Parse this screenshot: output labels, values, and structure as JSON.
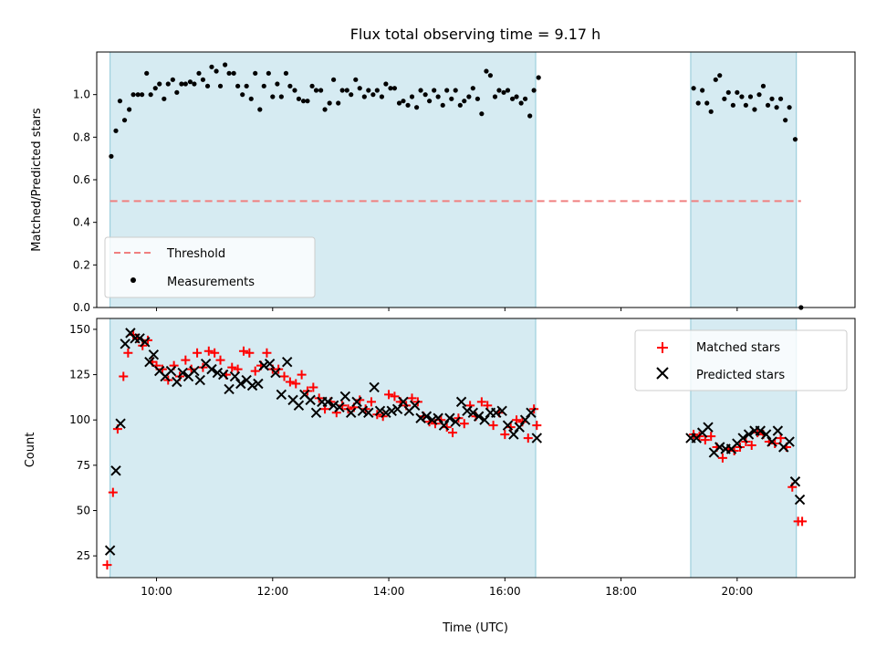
{
  "chart_data": [
    {
      "type": "scatter",
      "title": "Flux total observing time = 9.17 h",
      "ylabel": "Matched/Predicted stars",
      "xlim": [
        8.97,
        22.03
      ],
      "ylim": [
        0.0,
        1.2
      ],
      "yticks": [
        0.0,
        0.2,
        0.4,
        0.6,
        0.8,
        1.0
      ],
      "ytick_labels": [
        "0.0",
        "0.2",
        "0.4",
        "0.6",
        "0.8",
        "1.0"
      ],
      "legend_position": "lower-left",
      "shaded_intervals": [
        [
          9.2,
          16.53
        ],
        [
          19.2,
          21.02
        ]
      ],
      "series": [
        {
          "name": "Threshold",
          "style": "dashed-line",
          "color": "#f08080",
          "x": [
            9.2,
            21.1
          ],
          "y": [
            0.5,
            0.5
          ]
        },
        {
          "name": "Measurements",
          "style": "dot",
          "color": "#000000",
          "x": [
            9.22,
            9.3,
            9.37,
            9.45,
            9.53,
            9.6,
            9.68,
            9.75,
            9.83,
            9.9,
            9.98,
            10.05,
            10.13,
            10.2,
            10.28,
            10.35,
            10.43,
            10.5,
            10.58,
            10.65,
            10.73,
            10.8,
            10.88,
            10.95,
            11.03,
            11.1,
            11.18,
            11.25,
            11.33,
            11.4,
            11.48,
            11.55,
            11.63,
            11.7,
            11.78,
            11.85,
            11.93,
            12.0,
            12.08,
            12.15,
            12.23,
            12.3,
            12.38,
            12.45,
            12.53,
            12.6,
            12.68,
            12.75,
            12.83,
            12.9,
            12.98,
            13.05,
            13.13,
            13.2,
            13.28,
            13.35,
            13.43,
            13.5,
            13.58,
            13.65,
            13.73,
            13.8,
            13.88,
            13.95,
            14.03,
            14.1,
            14.18,
            14.25,
            14.33,
            14.4,
            14.48,
            14.55,
            14.63,
            14.7,
            14.78,
            14.85,
            14.93,
            15.0,
            15.08,
            15.15,
            15.23,
            15.3,
            15.38,
            15.45,
            15.53,
            15.6,
            15.68,
            15.75,
            15.83,
            15.9,
            15.98,
            16.05,
            16.13,
            16.2,
            16.28,
            16.35,
            16.43,
            16.5,
            16.58,
            19.25,
            19.33,
            19.4,
            19.48,
            19.55,
            19.63,
            19.7,
            19.78,
            19.85,
            19.93,
            20.0,
            20.08,
            20.15,
            20.23,
            20.3,
            20.38,
            20.45,
            20.53,
            20.6,
            20.68,
            20.75,
            20.83,
            20.9,
            21.0,
            21.1
          ],
          "y": [
            0.71,
            0.83,
            0.97,
            0.88,
            0.93,
            1.0,
            1.0,
            1.0,
            1.1,
            1.0,
            1.03,
            1.05,
            0.98,
            1.05,
            1.07,
            1.01,
            1.05,
            1.05,
            1.06,
            1.05,
            1.1,
            1.07,
            1.04,
            1.13,
            1.11,
            1.04,
            1.14,
            1.1,
            1.1,
            1.04,
            1.0,
            1.04,
            0.98,
            1.1,
            0.93,
            1.04,
            1.1,
            0.99,
            1.05,
            0.99,
            1.1,
            1.04,
            1.02,
            0.98,
            0.97,
            0.97,
            1.04,
            1.02,
            1.02,
            0.93,
            0.96,
            1.07,
            0.96,
            1.02,
            1.02,
            1.0,
            1.07,
            1.03,
            0.99,
            1.02,
            1.0,
            1.02,
            0.99,
            1.05,
            1.03,
            1.03,
            0.96,
            0.97,
            0.95,
            0.99,
            0.94,
            1.02,
            1.0,
            0.97,
            1.02,
            0.99,
            0.95,
            1.02,
            0.98,
            1.02,
            0.95,
            0.97,
            0.99,
            1.03,
            0.98,
            0.91,
            1.11,
            1.09,
            0.99,
            1.02,
            1.01,
            1.02,
            0.98,
            0.99,
            0.96,
            0.98,
            0.9,
            1.02,
            1.08,
            1.03,
            0.96,
            1.02,
            0.96,
            0.92,
            1.07,
            1.09,
            0.98,
            1.01,
            0.95,
            1.01,
            0.99,
            0.95,
            0.99,
            0.93,
            1.0,
            1.04,
            0.95,
            0.98,
            0.94,
            0.98,
            0.88,
            0.94,
            0.79,
            0.0
          ]
        }
      ]
    },
    {
      "type": "scatter",
      "xlabel": "Time (UTC)",
      "ylabel": "Count",
      "xlim": [
        8.97,
        22.03
      ],
      "ylim": [
        13,
        156
      ],
      "xticks": [
        10,
        12,
        14,
        16,
        18,
        20
      ],
      "xtick_labels": [
        "10:00",
        "12:00",
        "14:00",
        "16:00",
        "18:00",
        "20:00"
      ],
      "yticks": [
        25,
        50,
        75,
        100,
        125,
        150
      ],
      "ytick_labels": [
        "25",
        "50",
        "75",
        "100",
        "125",
        "150"
      ],
      "legend_position": "upper-right",
      "shaded_intervals": [
        [
          9.2,
          16.53
        ],
        [
          19.2,
          21.02
        ]
      ],
      "series": [
        {
          "name": "Matched stars",
          "marker": "plus",
          "color": "#ff0000",
          "x": [
            9.15,
            9.25,
            9.33,
            9.43,
            9.51,
            9.6,
            9.68,
            9.76,
            9.85,
            9.93,
            10.0,
            10.1,
            10.2,
            10.3,
            10.4,
            10.5,
            10.6,
            10.7,
            10.8,
            10.9,
            11.0,
            11.1,
            11.2,
            11.3,
            11.4,
            11.5,
            11.6,
            11.7,
            11.8,
            11.9,
            12.0,
            12.1,
            12.2,
            12.3,
            12.4,
            12.5,
            12.6,
            12.7,
            12.8,
            12.9,
            13.0,
            13.1,
            13.2,
            13.3,
            13.4,
            13.5,
            13.6,
            13.7,
            13.8,
            13.9,
            14.0,
            14.1,
            14.2,
            14.3,
            14.4,
            14.5,
            14.6,
            14.7,
            14.8,
            14.9,
            15.0,
            15.1,
            15.2,
            15.3,
            15.4,
            15.5,
            15.6,
            15.7,
            15.8,
            15.9,
            16.0,
            16.1,
            16.2,
            16.3,
            16.4,
            16.5,
            16.55,
            19.25,
            19.35,
            19.45,
            19.55,
            19.65,
            19.75,
            19.85,
            19.95,
            20.05,
            20.15,
            20.25,
            20.35,
            20.45,
            20.55,
            20.65,
            20.75,
            20.85,
            20.95,
            21.05,
            21.12
          ],
          "y": [
            20,
            60,
            95,
            124,
            137,
            147,
            145,
            141,
            144,
            132,
            130,
            128,
            122,
            130,
            124,
            133,
            128,
            137,
            129,
            138,
            137,
            133,
            125,
            129,
            128,
            138,
            137,
            127,
            130,
            137,
            128,
            128,
            124,
            121,
            120,
            125,
            116,
            118,
            112,
            106,
            110,
            104,
            108,
            106,
            107,
            111,
            106,
            110,
            103,
            102,
            114,
            113,
            110,
            108,
            112,
            110,
            102,
            99,
            98,
            100,
            96,
            93,
            101,
            98,
            108,
            102,
            110,
            108,
            97,
            104,
            92,
            96,
            100,
            99,
            90,
            106,
            97,
            92,
            91,
            89,
            91,
            85,
            79,
            84,
            83,
            85,
            88,
            86,
            93,
            92,
            88,
            87,
            90,
            85,
            63,
            44,
            44
          ]
        },
        {
          "name": "Predicted stars",
          "marker": "x",
          "color": "#000000",
          "x": [
            9.2,
            9.3,
            9.38,
            9.46,
            9.55,
            9.63,
            9.71,
            9.8,
            9.88,
            9.95,
            10.05,
            10.15,
            10.25,
            10.35,
            10.45,
            10.55,
            10.65,
            10.75,
            10.85,
            10.95,
            11.05,
            11.15,
            11.25,
            11.35,
            11.45,
            11.55,
            11.65,
            11.75,
            11.85,
            11.95,
            12.05,
            12.15,
            12.25,
            12.35,
            12.45,
            12.55,
            12.65,
            12.75,
            12.85,
            12.95,
            13.05,
            13.15,
            13.25,
            13.35,
            13.45,
            13.55,
            13.65,
            13.75,
            13.85,
            13.95,
            14.05,
            14.15,
            14.25,
            14.35,
            14.45,
            14.55,
            14.65,
            14.75,
            14.85,
            14.95,
            15.05,
            15.15,
            15.25,
            15.35,
            15.45,
            15.55,
            15.65,
            15.75,
            15.85,
            15.95,
            16.05,
            16.15,
            16.25,
            16.35,
            16.45,
            16.55,
            19.2,
            19.3,
            19.4,
            19.5,
            19.6,
            19.7,
            19.8,
            19.9,
            20.0,
            20.1,
            20.2,
            20.3,
            20.4,
            20.5,
            20.6,
            20.7,
            20.8,
            20.9,
            21.0,
            21.08
          ],
          "y": [
            28,
            72,
            98,
            142,
            148,
            145,
            145,
            143,
            132,
            136,
            127,
            124,
            127,
            121,
            126,
            124,
            127,
            122,
            131,
            128,
            126,
            125,
            117,
            124,
            120,
            122,
            119,
            120,
            130,
            131,
            126,
            114,
            132,
            111,
            108,
            114,
            111,
            104,
            110,
            110,
            108,
            107,
            113,
            104,
            110,
            105,
            104,
            118,
            105,
            104,
            105,
            106,
            110,
            105,
            108,
            101,
            102,
            100,
            101,
            97,
            101,
            99,
            110,
            105,
            104,
            102,
            100,
            104,
            104,
            105,
            97,
            92,
            96,
            100,
            104,
            90,
            90,
            90,
            93,
            96,
            82,
            85,
            84,
            84,
            87,
            90,
            92,
            94,
            94,
            92,
            88,
            94,
            85,
            88,
            66,
            56
          ]
        }
      ]
    }
  ]
}
